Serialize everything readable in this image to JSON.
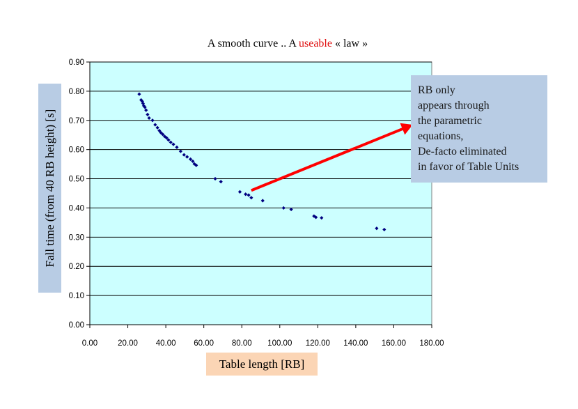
{
  "chart_data": {
    "type": "scatter",
    "title_parts": [
      {
        "text": "A smooth curve .. A ",
        "color": "#000000"
      },
      {
        "text": "useable",
        "color": "#e01010"
      },
      {
        "text": " « law »",
        "color": "#000000"
      }
    ],
    "xlabel": "Table length [RB]",
    "ylabel": "Fall time (from 40 RB height)  [s]",
    "xlim": [
      0,
      180
    ],
    "ylim": [
      0,
      0.9
    ],
    "x_ticks": [
      "0.00",
      "20.00",
      "40.00",
      "60.00",
      "80.00",
      "100.00",
      "120.00",
      "140.00",
      "160.00",
      "180.00"
    ],
    "y_ticks": [
      "0.00",
      "0.10",
      "0.20",
      "0.30",
      "0.40",
      "0.50",
      "0.60",
      "0.70",
      "0.80",
      "0.90"
    ],
    "grid": "horizontal",
    "background": "#ccffff",
    "marker_color": "#000080",
    "x": [
      26,
      27,
      27.6,
      28,
      28.4,
      29,
      29.6,
      30.4,
      31.2,
      33,
      34.4,
      35.6,
      36.6,
      37.4,
      38.4,
      39.4,
      40.4,
      41.4,
      42.6,
      44,
      45.8,
      47.8,
      49.6,
      51.2,
      53,
      54.2,
      55,
      56,
      66,
      69,
      79,
      82,
      83.6,
      85,
      91,
      102,
      106,
      118,
      119,
      122,
      151,
      155
    ],
    "y": [
      0.79,
      0.77,
      0.765,
      0.758,
      0.75,
      0.745,
      0.735,
      0.72,
      0.708,
      0.7,
      0.685,
      0.675,
      0.665,
      0.658,
      0.652,
      0.645,
      0.64,
      0.633,
      0.625,
      0.618,
      0.608,
      0.594,
      0.582,
      0.575,
      0.567,
      0.56,
      0.551,
      0.546,
      0.5,
      0.49,
      0.455,
      0.447,
      0.444,
      0.435,
      0.425,
      0.4,
      0.395,
      0.372,
      0.368,
      0.366,
      0.33,
      0.326
    ],
    "annotation": {
      "lines": [
        "RB only",
        "appears through",
        "the parametric",
        "equations,",
        "De-facto eliminated",
        "in favor of Table Units"
      ],
      "box_color": "#b8cce4",
      "arrow_color": "#ff0000",
      "arrow_from": [
        85,
        0.46
      ],
      "arrow_to": [
        170,
        0.685
      ]
    },
    "xlabel_box_color": "#fbd5b5",
    "ylabel_box_color": "#b8cce4"
  }
}
